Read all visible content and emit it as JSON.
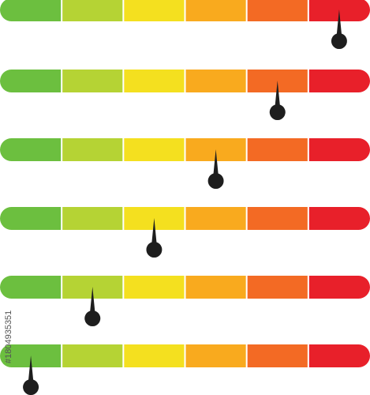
{
  "segment_colors": [
    "#6cbf3f",
    "#b5d334",
    "#f4e01f",
    "#f9aa1e",
    "#f36a24",
    "#e8202a"
  ],
  "needle_color": "#1e1e1e",
  "gauges": [
    {
      "level": 6
    },
    {
      "level": 5
    },
    {
      "level": 4
    },
    {
      "level": 3
    },
    {
      "level": 2
    },
    {
      "level": 1
    }
  ],
  "watermark": "#1804935351"
}
